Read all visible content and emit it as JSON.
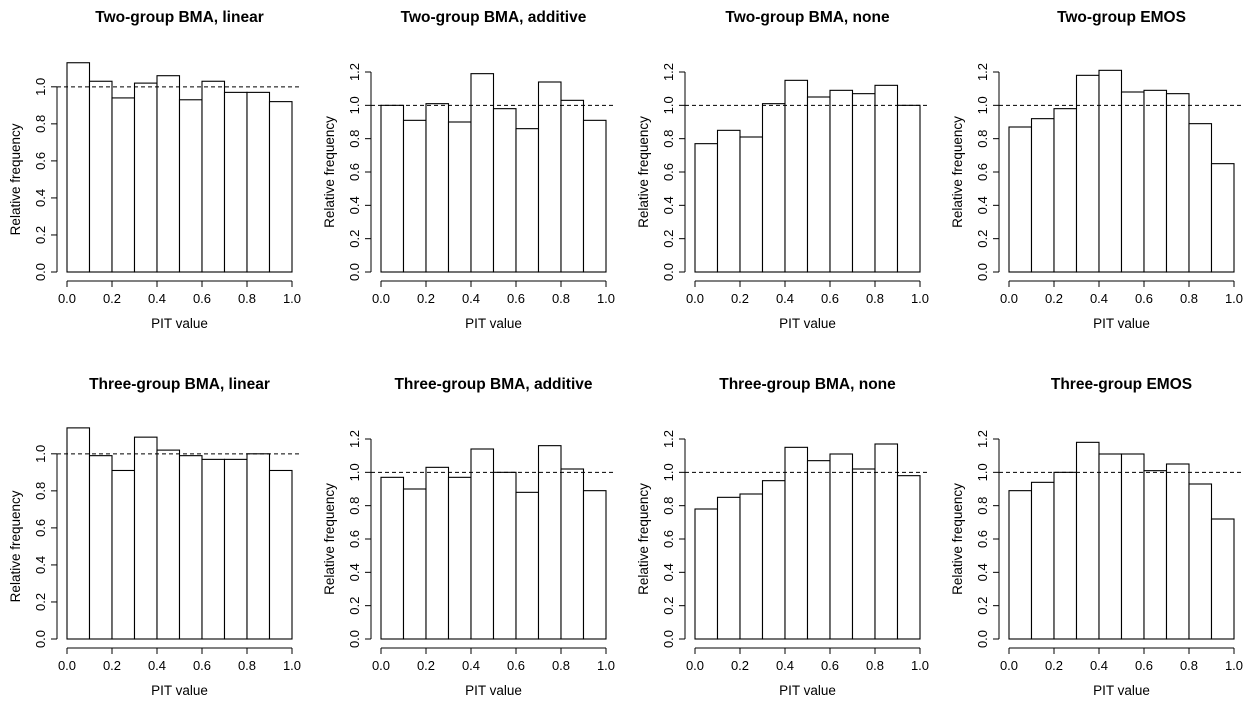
{
  "colors": {
    "bar_fill": "#ffffff",
    "bar_stroke": "#000000",
    "reference_line": "#000000"
  },
  "chart_data": [
    {
      "type": "bar",
      "title": "Two-group BMA, linear",
      "xlabel": "PIT value",
      "ylabel": "Relative frequency",
      "bin_edges": [
        0,
        0.1,
        0.2,
        0.3,
        0.4,
        0.5,
        0.6,
        0.7,
        0.8,
        0.9,
        1.0
      ],
      "values": [
        1.13,
        1.03,
        0.94,
        1.02,
        1.06,
        0.93,
        1.03,
        0.97,
        0.97,
        0.92
      ],
      "reference_line": 1.0,
      "xlim": [
        0,
        1
      ],
      "ylim": [
        0,
        1.08
      ],
      "xticks": [
        "0.0",
        "0.2",
        "0.4",
        "0.6",
        "0.8",
        "1.0"
      ],
      "yticks": [
        "0.0",
        "0.2",
        "0.4",
        "0.6",
        "0.8",
        "1.0"
      ],
      "grid": false
    },
    {
      "type": "bar",
      "title": "Two-group BMA, additive",
      "xlabel": "PIT value",
      "ylabel": "Relative frequency",
      "bin_edges": [
        0,
        0.1,
        0.2,
        0.3,
        0.4,
        0.5,
        0.6,
        0.7,
        0.8,
        0.9,
        1.0
      ],
      "values": [
        1.0,
        0.91,
        1.01,
        0.9,
        1.19,
        0.98,
        0.86,
        1.14,
        1.03,
        0.91
      ],
      "reference_line": 1.0,
      "xlim": [
        0,
        1
      ],
      "ylim": [
        0,
        1.2
      ],
      "xticks": [
        "0.0",
        "0.2",
        "0.4",
        "0.6",
        "0.8",
        "1.0"
      ],
      "yticks": [
        "0.0",
        "0.2",
        "0.4",
        "0.6",
        "0.8",
        "1.0",
        "1.2"
      ],
      "grid": false
    },
    {
      "type": "bar",
      "title": "Two-group BMA, none",
      "xlabel": "PIT value",
      "ylabel": "Relative frequency",
      "bin_edges": [
        0,
        0.1,
        0.2,
        0.3,
        0.4,
        0.5,
        0.6,
        0.7,
        0.8,
        0.9,
        1.0
      ],
      "values": [
        0.77,
        0.85,
        0.81,
        1.01,
        1.15,
        1.05,
        1.09,
        1.07,
        1.12,
        1.0
      ],
      "reference_line": 1.0,
      "xlim": [
        0,
        1
      ],
      "ylim": [
        0,
        1.2
      ],
      "xticks": [
        "0.0",
        "0.2",
        "0.4",
        "0.6",
        "0.8",
        "1.0"
      ],
      "yticks": [
        "0.0",
        "0.2",
        "0.4",
        "0.6",
        "0.8",
        "1.0",
        "1.2"
      ],
      "grid": false
    },
    {
      "type": "bar",
      "title": "Two-group EMOS",
      "xlabel": "PIT value",
      "ylabel": "Relative frequency",
      "bin_edges": [
        0,
        0.1,
        0.2,
        0.3,
        0.4,
        0.5,
        0.6,
        0.7,
        0.8,
        0.9,
        1.0
      ],
      "values": [
        0.87,
        0.92,
        0.98,
        1.18,
        1.21,
        1.08,
        1.09,
        1.07,
        0.89,
        0.65
      ],
      "reference_line": 1.0,
      "xlim": [
        0,
        1
      ],
      "ylim": [
        0,
        1.2
      ],
      "xticks": [
        "0.0",
        "0.2",
        "0.4",
        "0.6",
        "0.8",
        "1.0"
      ],
      "yticks": [
        "0.0",
        "0.2",
        "0.4",
        "0.6",
        "0.8",
        "1.0",
        "1.2"
      ],
      "grid": false
    },
    {
      "type": "bar",
      "title": "Three-group BMA, linear",
      "xlabel": "PIT value",
      "ylabel": "Relative frequency",
      "bin_edges": [
        0,
        0.1,
        0.2,
        0.3,
        0.4,
        0.5,
        0.6,
        0.7,
        0.8,
        0.9,
        1.0
      ],
      "values": [
        1.14,
        0.99,
        0.91,
        1.09,
        1.02,
        0.99,
        0.97,
        0.97,
        1.0,
        0.91
      ],
      "reference_line": 1.0,
      "xlim": [
        0,
        1
      ],
      "ylim": [
        0,
        1.08
      ],
      "xticks": [
        "0.0",
        "0.2",
        "0.4",
        "0.6",
        "0.8",
        "1.0"
      ],
      "yticks": [
        "0.0",
        "0.2",
        "0.4",
        "0.6",
        "0.8",
        "1.0"
      ],
      "grid": false
    },
    {
      "type": "bar",
      "title": "Three-group BMA, additive",
      "xlabel": "PIT value",
      "ylabel": "Relative frequency",
      "bin_edges": [
        0,
        0.1,
        0.2,
        0.3,
        0.4,
        0.5,
        0.6,
        0.7,
        0.8,
        0.9,
        1.0
      ],
      "values": [
        0.97,
        0.9,
        1.03,
        0.97,
        1.14,
        1.0,
        0.88,
        1.16,
        1.02,
        0.89
      ],
      "reference_line": 1.0,
      "xlim": [
        0,
        1
      ],
      "ylim": [
        0,
        1.2
      ],
      "xticks": [
        "0.0",
        "0.2",
        "0.4",
        "0.6",
        "0.8",
        "1.0"
      ],
      "yticks": [
        "0.0",
        "0.2",
        "0.4",
        "0.6",
        "0.8",
        "1.0",
        "1.2"
      ],
      "grid": false
    },
    {
      "type": "bar",
      "title": "Three-group BMA, none",
      "xlabel": "PIT value",
      "ylabel": "Relative frequency",
      "bin_edges": [
        0,
        0.1,
        0.2,
        0.3,
        0.4,
        0.5,
        0.6,
        0.7,
        0.8,
        0.9,
        1.0
      ],
      "values": [
        0.78,
        0.85,
        0.87,
        0.95,
        1.15,
        1.07,
        1.11,
        1.02,
        1.17,
        0.98
      ],
      "reference_line": 1.0,
      "xlim": [
        0,
        1
      ],
      "ylim": [
        0,
        1.2
      ],
      "xticks": [
        "0.0",
        "0.2",
        "0.4",
        "0.6",
        "0.8",
        "1.0"
      ],
      "yticks": [
        "0.0",
        "0.2",
        "0.4",
        "0.6",
        "0.8",
        "1.0",
        "1.2"
      ],
      "grid": false
    },
    {
      "type": "bar",
      "title": "Three-group EMOS",
      "xlabel": "PIT value",
      "ylabel": "Relative frequency",
      "bin_edges": [
        0,
        0.1,
        0.2,
        0.3,
        0.4,
        0.5,
        0.6,
        0.7,
        0.8,
        0.9,
        1.0
      ],
      "values": [
        0.89,
        0.94,
        1.0,
        1.18,
        1.11,
        1.11,
        1.01,
        1.05,
        0.93,
        0.72
      ],
      "reference_line": 1.0,
      "xlim": [
        0,
        1
      ],
      "ylim": [
        0,
        1.2
      ],
      "xticks": [
        "0.0",
        "0.2",
        "0.4",
        "0.6",
        "0.8",
        "1.0"
      ],
      "yticks": [
        "0.0",
        "0.2",
        "0.4",
        "0.6",
        "0.8",
        "1.0",
        "1.2"
      ],
      "grid": false
    }
  ]
}
